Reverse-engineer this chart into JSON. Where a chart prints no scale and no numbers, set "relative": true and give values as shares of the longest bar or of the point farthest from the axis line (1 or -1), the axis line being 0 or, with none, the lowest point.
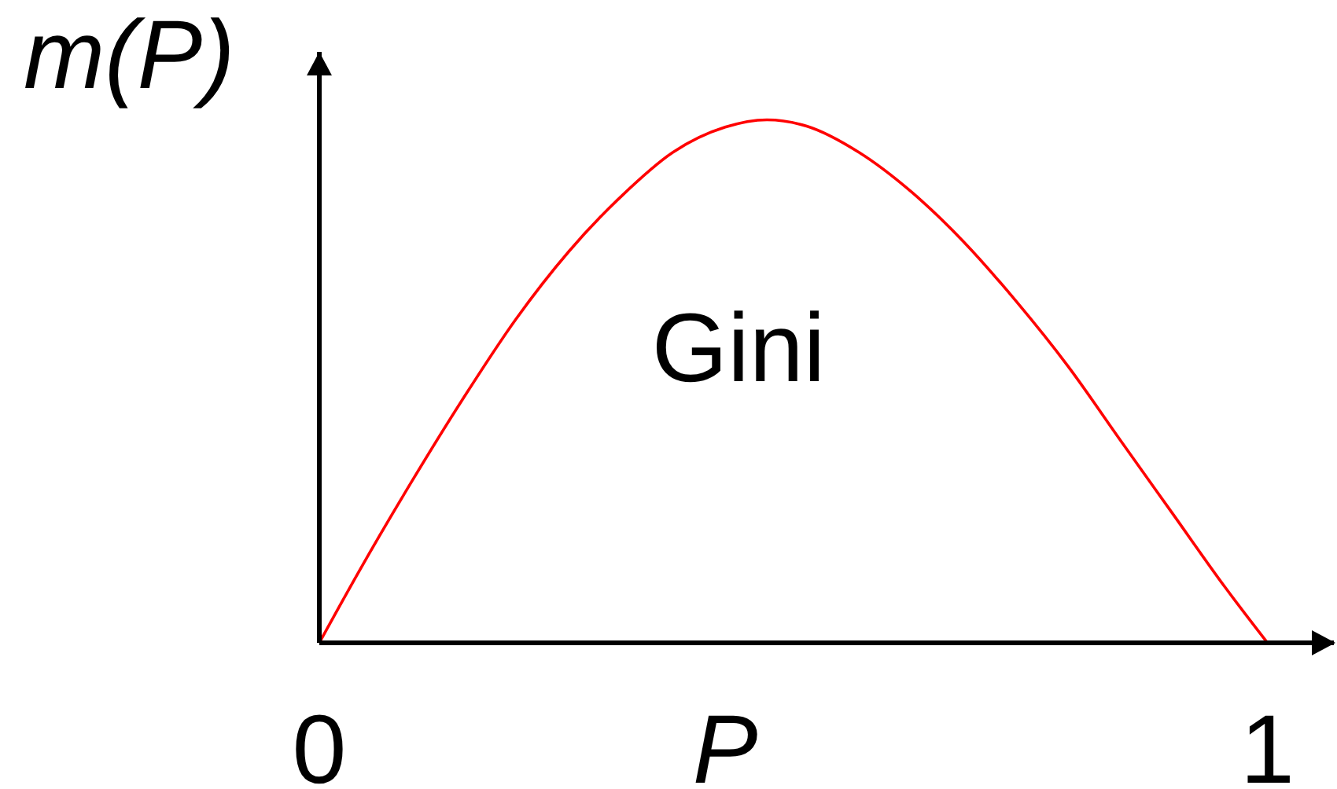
{
  "chart_data": {
    "type": "line",
    "xlabel": "P",
    "ylabel": "m(P)",
    "relative": true,
    "x": [
      0,
      0.042,
      0.097,
      0.152,
      0.207,
      0.263,
      0.318,
      0.373,
      0.428,
      0.472,
      0.514,
      0.569,
      0.624,
      0.679,
      0.735,
      0.79,
      0.845,
      0.9,
      0.955,
      1
    ],
    "xlim": [
      0,
      1.07
    ],
    "xticks": [
      0,
      1
    ],
    "series": [
      {
        "name": "Gini",
        "color": "#ff0000",
        "values": [
          0,
          0.137,
          0.307,
          0.468,
          0.618,
          0.748,
          0.853,
          0.938,
          0.986,
          1,
          0.988,
          0.938,
          0.863,
          0.768,
          0.653,
          0.528,
          0.387,
          0.247,
          0.107,
          0
        ]
      }
    ]
  }
}
